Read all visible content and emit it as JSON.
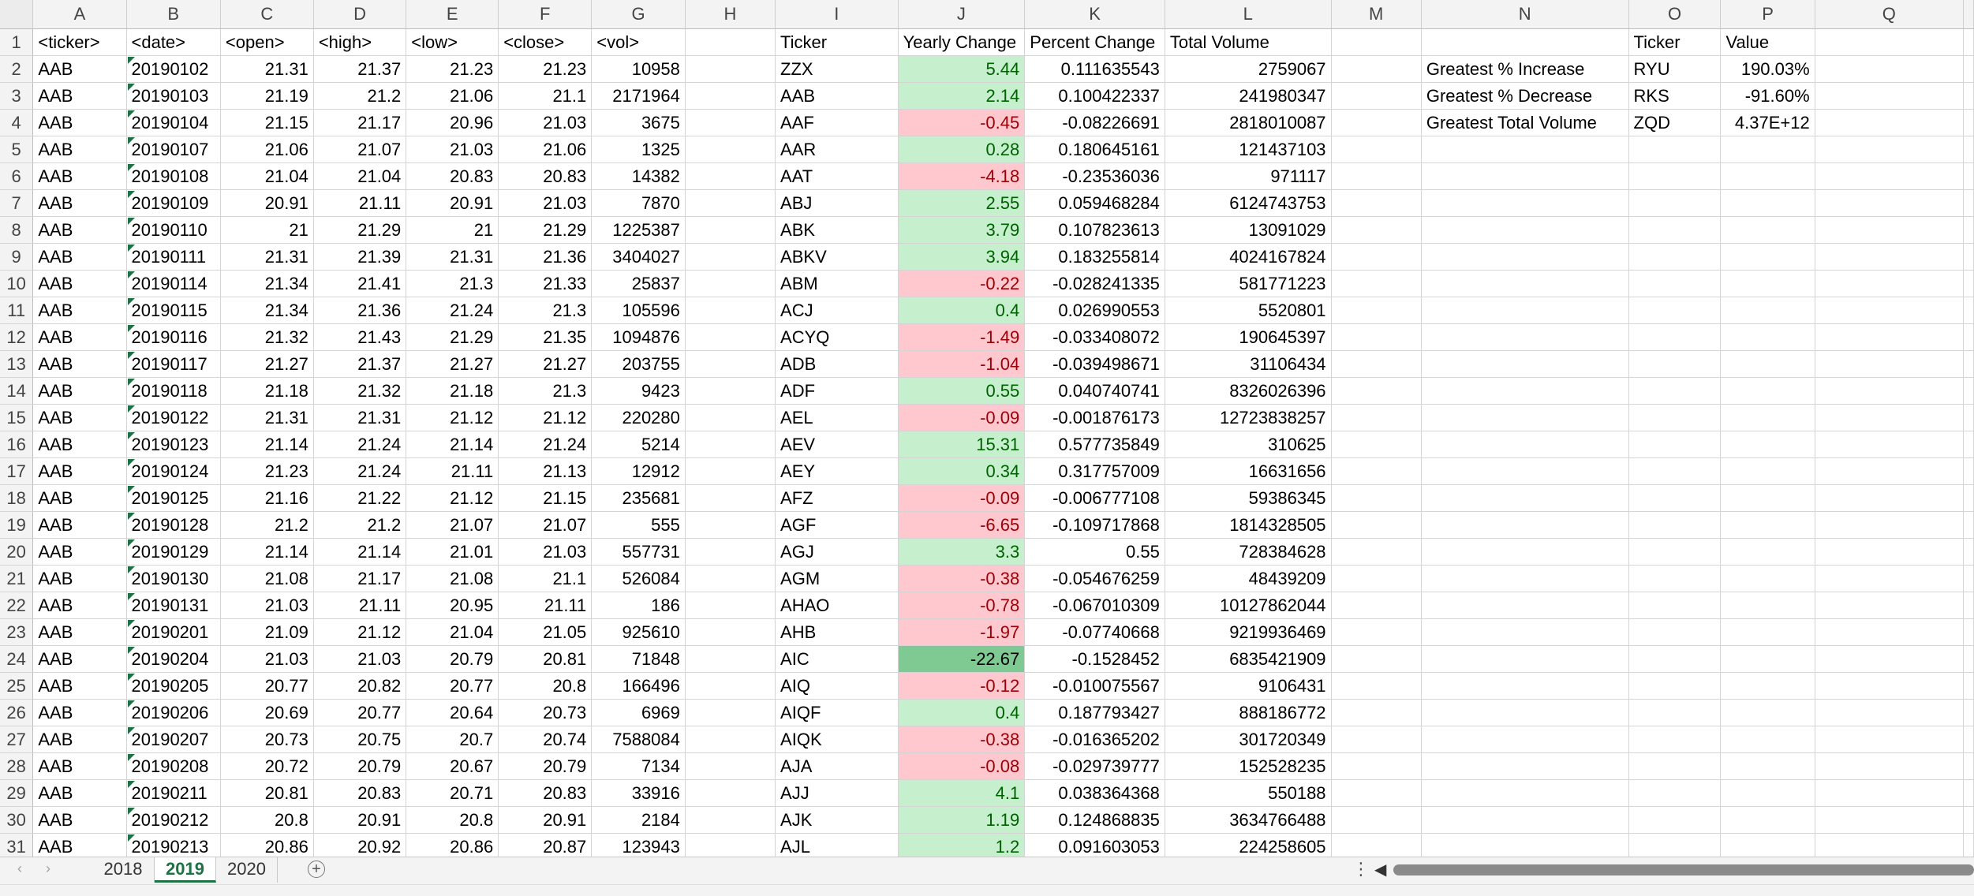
{
  "columns": [
    "A",
    "B",
    "C",
    "D",
    "E",
    "F",
    "G",
    "H",
    "I",
    "J",
    "K",
    "L",
    "M",
    "N",
    "O",
    "P",
    "Q"
  ],
  "header_row": {
    "A": "<ticker>",
    "B": "<date>",
    "C": "<open>",
    "D": "<high>",
    "E": "<low>",
    "F": "<close>",
    "G": "<vol>",
    "I": "Ticker",
    "J": "Yearly Change",
    "K": "Percent Change",
    "L": "Total Volume",
    "O": "Ticker",
    "P": "Value"
  },
  "raw_data": [
    [
      "AAB",
      "20190102",
      "21.31",
      "21.37",
      "21.23",
      "21.23",
      "10958"
    ],
    [
      "AAB",
      "20190103",
      "21.19",
      "21.2",
      "21.06",
      "21.1",
      "2171964"
    ],
    [
      "AAB",
      "20190104",
      "21.15",
      "21.17",
      "20.96",
      "21.03",
      "3675"
    ],
    [
      "AAB",
      "20190107",
      "21.06",
      "21.07",
      "21.03",
      "21.06",
      "1325"
    ],
    [
      "AAB",
      "20190108",
      "21.04",
      "21.04",
      "20.83",
      "20.83",
      "14382"
    ],
    [
      "AAB",
      "20190109",
      "20.91",
      "21.11",
      "20.91",
      "21.03",
      "7870"
    ],
    [
      "AAB",
      "20190110",
      "21",
      "21.29",
      "21",
      "21.29",
      "1225387"
    ],
    [
      "AAB",
      "20190111",
      "21.31",
      "21.39",
      "21.31",
      "21.36",
      "3404027"
    ],
    [
      "AAB",
      "20190114",
      "21.34",
      "21.41",
      "21.3",
      "21.33",
      "25837"
    ],
    [
      "AAB",
      "20190115",
      "21.34",
      "21.36",
      "21.24",
      "21.3",
      "105596"
    ],
    [
      "AAB",
      "20190116",
      "21.32",
      "21.43",
      "21.29",
      "21.35",
      "1094876"
    ],
    [
      "AAB",
      "20190117",
      "21.27",
      "21.37",
      "21.27",
      "21.27",
      "203755"
    ],
    [
      "AAB",
      "20190118",
      "21.18",
      "21.32",
      "21.18",
      "21.3",
      "9423"
    ],
    [
      "AAB",
      "20190122",
      "21.31",
      "21.31",
      "21.12",
      "21.12",
      "220280"
    ],
    [
      "AAB",
      "20190123",
      "21.14",
      "21.24",
      "21.14",
      "21.24",
      "5214"
    ],
    [
      "AAB",
      "20190124",
      "21.23",
      "21.24",
      "21.11",
      "21.13",
      "12912"
    ],
    [
      "AAB",
      "20190125",
      "21.16",
      "21.22",
      "21.12",
      "21.15",
      "235681"
    ],
    [
      "AAB",
      "20190128",
      "21.2",
      "21.2",
      "21.07",
      "21.07",
      "555"
    ],
    [
      "AAB",
      "20190129",
      "21.14",
      "21.14",
      "21.01",
      "21.03",
      "557731"
    ],
    [
      "AAB",
      "20190130",
      "21.08",
      "21.17",
      "21.08",
      "21.1",
      "526084"
    ],
    [
      "AAB",
      "20190131",
      "21.03",
      "21.11",
      "20.95",
      "21.11",
      "186"
    ],
    [
      "AAB",
      "20190201",
      "21.09",
      "21.12",
      "21.04",
      "21.05",
      "925610"
    ],
    [
      "AAB",
      "20190204",
      "21.03",
      "21.03",
      "20.79",
      "20.81",
      "71848"
    ],
    [
      "AAB",
      "20190205",
      "20.77",
      "20.82",
      "20.77",
      "20.8",
      "166496"
    ],
    [
      "AAB",
      "20190206",
      "20.69",
      "20.77",
      "20.64",
      "20.73",
      "6969"
    ],
    [
      "AAB",
      "20190207",
      "20.73",
      "20.75",
      "20.7",
      "20.74",
      "7588084"
    ],
    [
      "AAB",
      "20190208",
      "20.72",
      "20.79",
      "20.67",
      "20.79",
      "7134"
    ],
    [
      "AAB",
      "20190211",
      "20.81",
      "20.83",
      "20.71",
      "20.83",
      "33916"
    ],
    [
      "AAB",
      "20190212",
      "20.8",
      "20.91",
      "20.8",
      "20.91",
      "2184"
    ],
    [
      "AAB",
      "20190213",
      "20.86",
      "20.92",
      "20.86",
      "20.87",
      "123943"
    ]
  ],
  "summary": [
    [
      "ZZX",
      "5.44",
      "0.111635543",
      "2759067",
      "pos"
    ],
    [
      "AAB",
      "2.14",
      "0.100422337",
      "241980347",
      "pos"
    ],
    [
      "AAF",
      "-0.45",
      "-0.08226691",
      "2818010087",
      "neg"
    ],
    [
      "AAR",
      "0.28",
      "0.180645161",
      "121437103",
      "pos"
    ],
    [
      "AAT",
      "-4.18",
      "-0.23536036",
      "971117",
      "neg"
    ],
    [
      "ABJ",
      "2.55",
      "0.059468284",
      "6124743753",
      "pos"
    ],
    [
      "ABK",
      "3.79",
      "0.107823613",
      "13091029",
      "pos"
    ],
    [
      "ABKV",
      "3.94",
      "0.183255814",
      "4024167824",
      "pos"
    ],
    [
      "ABM",
      "-0.22",
      "-0.028241335",
      "581771223",
      "neg"
    ],
    [
      "ACJ",
      "0.4",
      "0.026990553",
      "5520801",
      "pos"
    ],
    [
      "ACYQ",
      "-1.49",
      "-0.033408072",
      "190645397",
      "neg"
    ],
    [
      "ADB",
      "-1.04",
      "-0.039498671",
      "31106434",
      "neg"
    ],
    [
      "ADF",
      "0.55",
      "0.040740741",
      "8326026396",
      "pos"
    ],
    [
      "AEL",
      "-0.09",
      "-0.001876173",
      "12723838257",
      "neg"
    ],
    [
      "AEV",
      "15.31",
      "0.577735849",
      "310625",
      "pos"
    ],
    [
      "AEY",
      "0.34",
      "0.317757009",
      "16631656",
      "pos"
    ],
    [
      "AFZ",
      "-0.09",
      "-0.006777108",
      "59386345",
      "neg"
    ],
    [
      "AGF",
      "-6.65",
      "-0.109717868",
      "1814328505",
      "neg"
    ],
    [
      "AGJ",
      "3.3",
      "0.55",
      "728384628",
      "pos"
    ],
    [
      "AGM",
      "-0.38",
      "-0.054676259",
      "48439209",
      "neg"
    ],
    [
      "AHAO",
      "-0.78",
      "-0.067010309",
      "10127862044",
      "neg"
    ],
    [
      "AHB",
      "-1.97",
      "-0.07740668",
      "9219936469",
      "neg"
    ],
    [
      "AIC",
      "-22.67",
      "-0.1528452",
      "6835421909",
      "strong"
    ],
    [
      "AIQ",
      "-0.12",
      "-0.010075567",
      "9106431",
      "neg"
    ],
    [
      "AIQF",
      "0.4",
      "0.187793427",
      "888186772",
      "pos"
    ],
    [
      "AIQK",
      "-0.38",
      "-0.016365202",
      "301720349",
      "neg"
    ],
    [
      "AJA",
      "-0.08",
      "-0.029739777",
      "152528235",
      "neg"
    ],
    [
      "AJJ",
      "4.1",
      "0.038364368",
      "550188",
      "pos"
    ],
    [
      "AJK",
      "1.19",
      "0.124868835",
      "3634766488",
      "pos"
    ],
    [
      "AJL",
      "1.2",
      "0.091603053",
      "224258605",
      "pos"
    ]
  ],
  "greatest": [
    [
      "Greatest % Increase",
      "RYU",
      "190.03%"
    ],
    [
      "Greatest % Decrease",
      "RKS",
      "-91.60%"
    ],
    [
      "Greatest Total Volume",
      "ZQD",
      "4.37E+12"
    ]
  ],
  "colors": {
    "positive_fill": "#c6efce",
    "positive_text": "#006100",
    "negative_fill": "#ffc7ce",
    "negative_text": "#9c0006",
    "strong_fill": "#7fca92",
    "active_tab": "#1e7145"
  },
  "sheet_tabs": [
    "2018",
    "2019",
    "2020"
  ],
  "active_tab": "2019",
  "icons": {
    "tab_prev": "chevron-left-icon",
    "tab_next": "chevron-right-icon",
    "add_sheet": "plus-icon",
    "options": "vertical-dots-icon",
    "scroll_left": "triangle-left-icon"
  }
}
